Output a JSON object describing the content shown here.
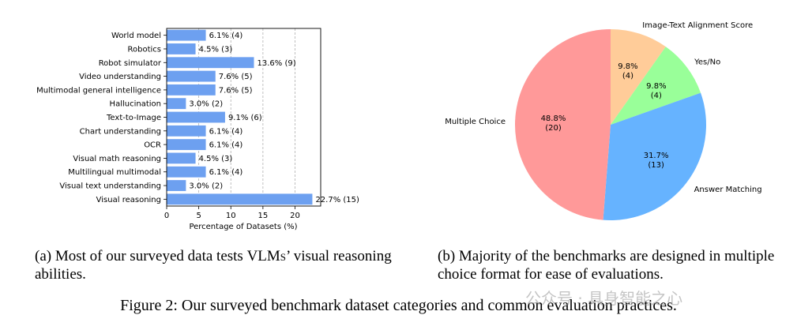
{
  "chart_data": [
    {
      "type": "bar",
      "orientation": "horizontal",
      "categories": [
        "World model",
        "Robotics",
        "Robot simulator",
        "Video understanding",
        "Multimodal general intelligence",
        "Hallucination",
        "Text-to-Image",
        "Chart understanding",
        "OCR",
        "Visual math reasoning",
        "Multilingual multimodal",
        "Visual text understanding",
        "Visual reasoning"
      ],
      "values": [
        6.1,
        4.5,
        13.6,
        7.6,
        7.6,
        3.0,
        9.1,
        6.1,
        6.1,
        4.5,
        6.1,
        3.0,
        22.7
      ],
      "data_labels": [
        "6.1% (4)",
        "4.5% (3)",
        "13.6% (9)",
        "7.6% (5)",
        "7.6% (5)",
        "3.0% (2)",
        "9.1% (6)",
        "6.1% (4)",
        "6.1% (4)",
        "4.5% (3)",
        "6.1% (4)",
        "3.0% (2)",
        "22.7% (15)"
      ],
      "xlabel": "Percentage of Datasets (%)",
      "ylabel": "",
      "xlim": [
        0,
        24
      ],
      "xticks": [
        0,
        5,
        10,
        15,
        20
      ],
      "grid": "x-dashed",
      "bar_color": "#6da0f0"
    },
    {
      "type": "pie",
      "slices": [
        {
          "label": "Image-Text Alignment Score",
          "value": 9.8,
          "pct_label": "9.8%",
          "count_label": "(4)",
          "color": "#ffcc99"
        },
        {
          "label": "Yes/No",
          "value": 9.8,
          "pct_label": "9.8%",
          "count_label": "(4)",
          "color": "#99ff99"
        },
        {
          "label": "Answer Matching",
          "value": 31.7,
          "pct_label": "31.7%",
          "count_label": "(13)",
          "color": "#66b3ff"
        },
        {
          "label": "Multiple Choice",
          "value": 48.8,
          "pct_label": "48.8%",
          "count_label": "(20)",
          "color": "#ff9999"
        }
      ]
    }
  ],
  "captions": {
    "a_prefix": "(a) Most of our surveyed data tests ",
    "a_vlms": "VLMs",
    "a_suffix": "’ visual reasoning abilities.",
    "b": "(b) Majority of the benchmarks are designed in multiple choice format for ease of evaluations.",
    "main": "Figure 2: Our surveyed benchmark dataset categories and common evaluation practices."
  },
  "watermark": "公众号 · 具身智能之心"
}
